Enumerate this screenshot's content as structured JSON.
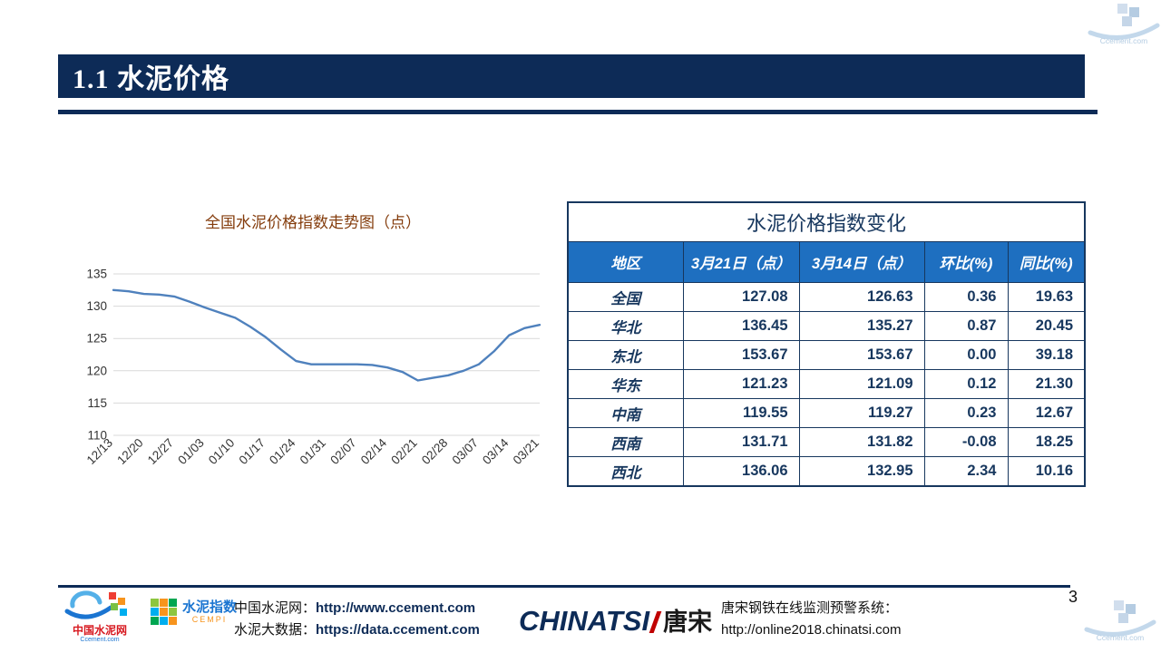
{
  "page": {
    "number": "3"
  },
  "header": {
    "title": "1.1 水泥价格"
  },
  "chart_data": [
    {
      "type": "line",
      "title": "全国水泥价格指数走势图（点）",
      "x_labels": [
        "12/13",
        "12/20",
        "12/27",
        "01/03",
        "01/10",
        "01/17",
        "01/24",
        "01/31",
        "02/07",
        "02/14",
        "02/21",
        "02/28",
        "03/07",
        "03/14",
        "03/21"
      ],
      "label_every": 2,
      "values": [
        132.5,
        132.3,
        131.9,
        131.8,
        131.5,
        130.7,
        129.8,
        129.0,
        128.2,
        126.8,
        125.2,
        123.3,
        121.5,
        121.0,
        121.0,
        121.0,
        121.0,
        120.9,
        120.5,
        119.8,
        118.5,
        118.9,
        119.3,
        120.0,
        121.0,
        123.0,
        125.5,
        126.6,
        127.1
      ],
      "ylim": [
        110,
        135
      ],
      "ytick_step": 5,
      "line_color": "#4f81bd",
      "grid_color": "#d9d9d9",
      "grid": true,
      "legend": "none",
      "xlabel": "",
      "ylabel": ""
    },
    {
      "type": "table",
      "title": "水泥价格指数变化",
      "columns": [
        "地区",
        "3月21日（点）",
        "3月14日（点）",
        "环比(%)",
        "同比(%)"
      ],
      "rows": [
        [
          "全国",
          "127.08",
          "126.63",
          "0.36",
          "19.63"
        ],
        [
          "华北",
          "136.45",
          "135.27",
          "0.87",
          "20.45"
        ],
        [
          "东北",
          "153.67",
          "153.67",
          "0.00",
          "39.18"
        ],
        [
          "华东",
          "121.23",
          "121.09",
          "0.12",
          "21.30"
        ],
        [
          "中南",
          "119.55",
          "119.27",
          "0.23",
          "12.67"
        ],
        [
          "西南",
          "131.71",
          "131.82",
          "-0.08",
          "18.25"
        ],
        [
          "西北",
          "136.06",
          "132.95",
          "2.34",
          "10.16"
        ]
      ],
      "header_bg": "#1e6fc0",
      "text_color": "#17375E"
    }
  ],
  "footer": {
    "ccement_logo": {
      "name": "中国水泥网",
      "sub": "Ccement.com"
    },
    "cempi_logo": {
      "name": "水泥指数",
      "sub": "CEMPI"
    },
    "left_lines": [
      {
        "label": "中国水泥网：",
        "url": "http://www.ccement.com"
      },
      {
        "label": "水泥大数据：",
        "url": "https://data.ccement.com"
      }
    ],
    "chinatsi_logo": {
      "latin": "CHINATSI",
      "cjk": "唐宋"
    },
    "right_line1": "唐宋钢铁在线监测预警系统：",
    "right_line2": "http://online2018.chinatsi.com"
  },
  "watermark": {
    "text": "Ccement.com"
  }
}
